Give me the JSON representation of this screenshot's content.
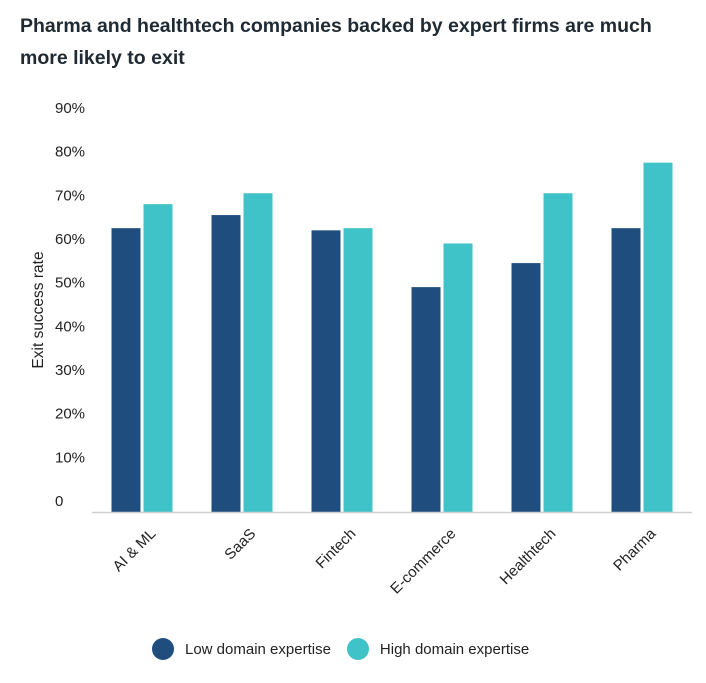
{
  "chart_data": {
    "type": "bar",
    "title": "Pharma and healthtech companies backed by expert firms are much more likely to exit",
    "ylabel": "Exit success rate",
    "xlabel": "",
    "ylim": [
      0,
      90
    ],
    "yticks": [
      "0",
      "10%",
      "20%",
      "30%",
      "40%",
      "50%",
      "60%",
      "70%",
      "80%",
      "90%"
    ],
    "categories": [
      "AI & ML",
      "SaaS",
      "Fintech",
      "E-commerce",
      "Healthtech",
      "Pharma"
    ],
    "series": [
      {
        "name": "Low domain expertise",
        "color": "#1f4e7e",
        "values": [
          65,
          68,
          64.5,
          51.5,
          57,
          65
        ]
      },
      {
        "name": "High domain expertise",
        "color": "#40c3c8",
        "values": [
          70.5,
          73,
          65,
          61.5,
          73,
          80
        ]
      }
    ],
    "grid": false,
    "legend_position": "bottom"
  }
}
